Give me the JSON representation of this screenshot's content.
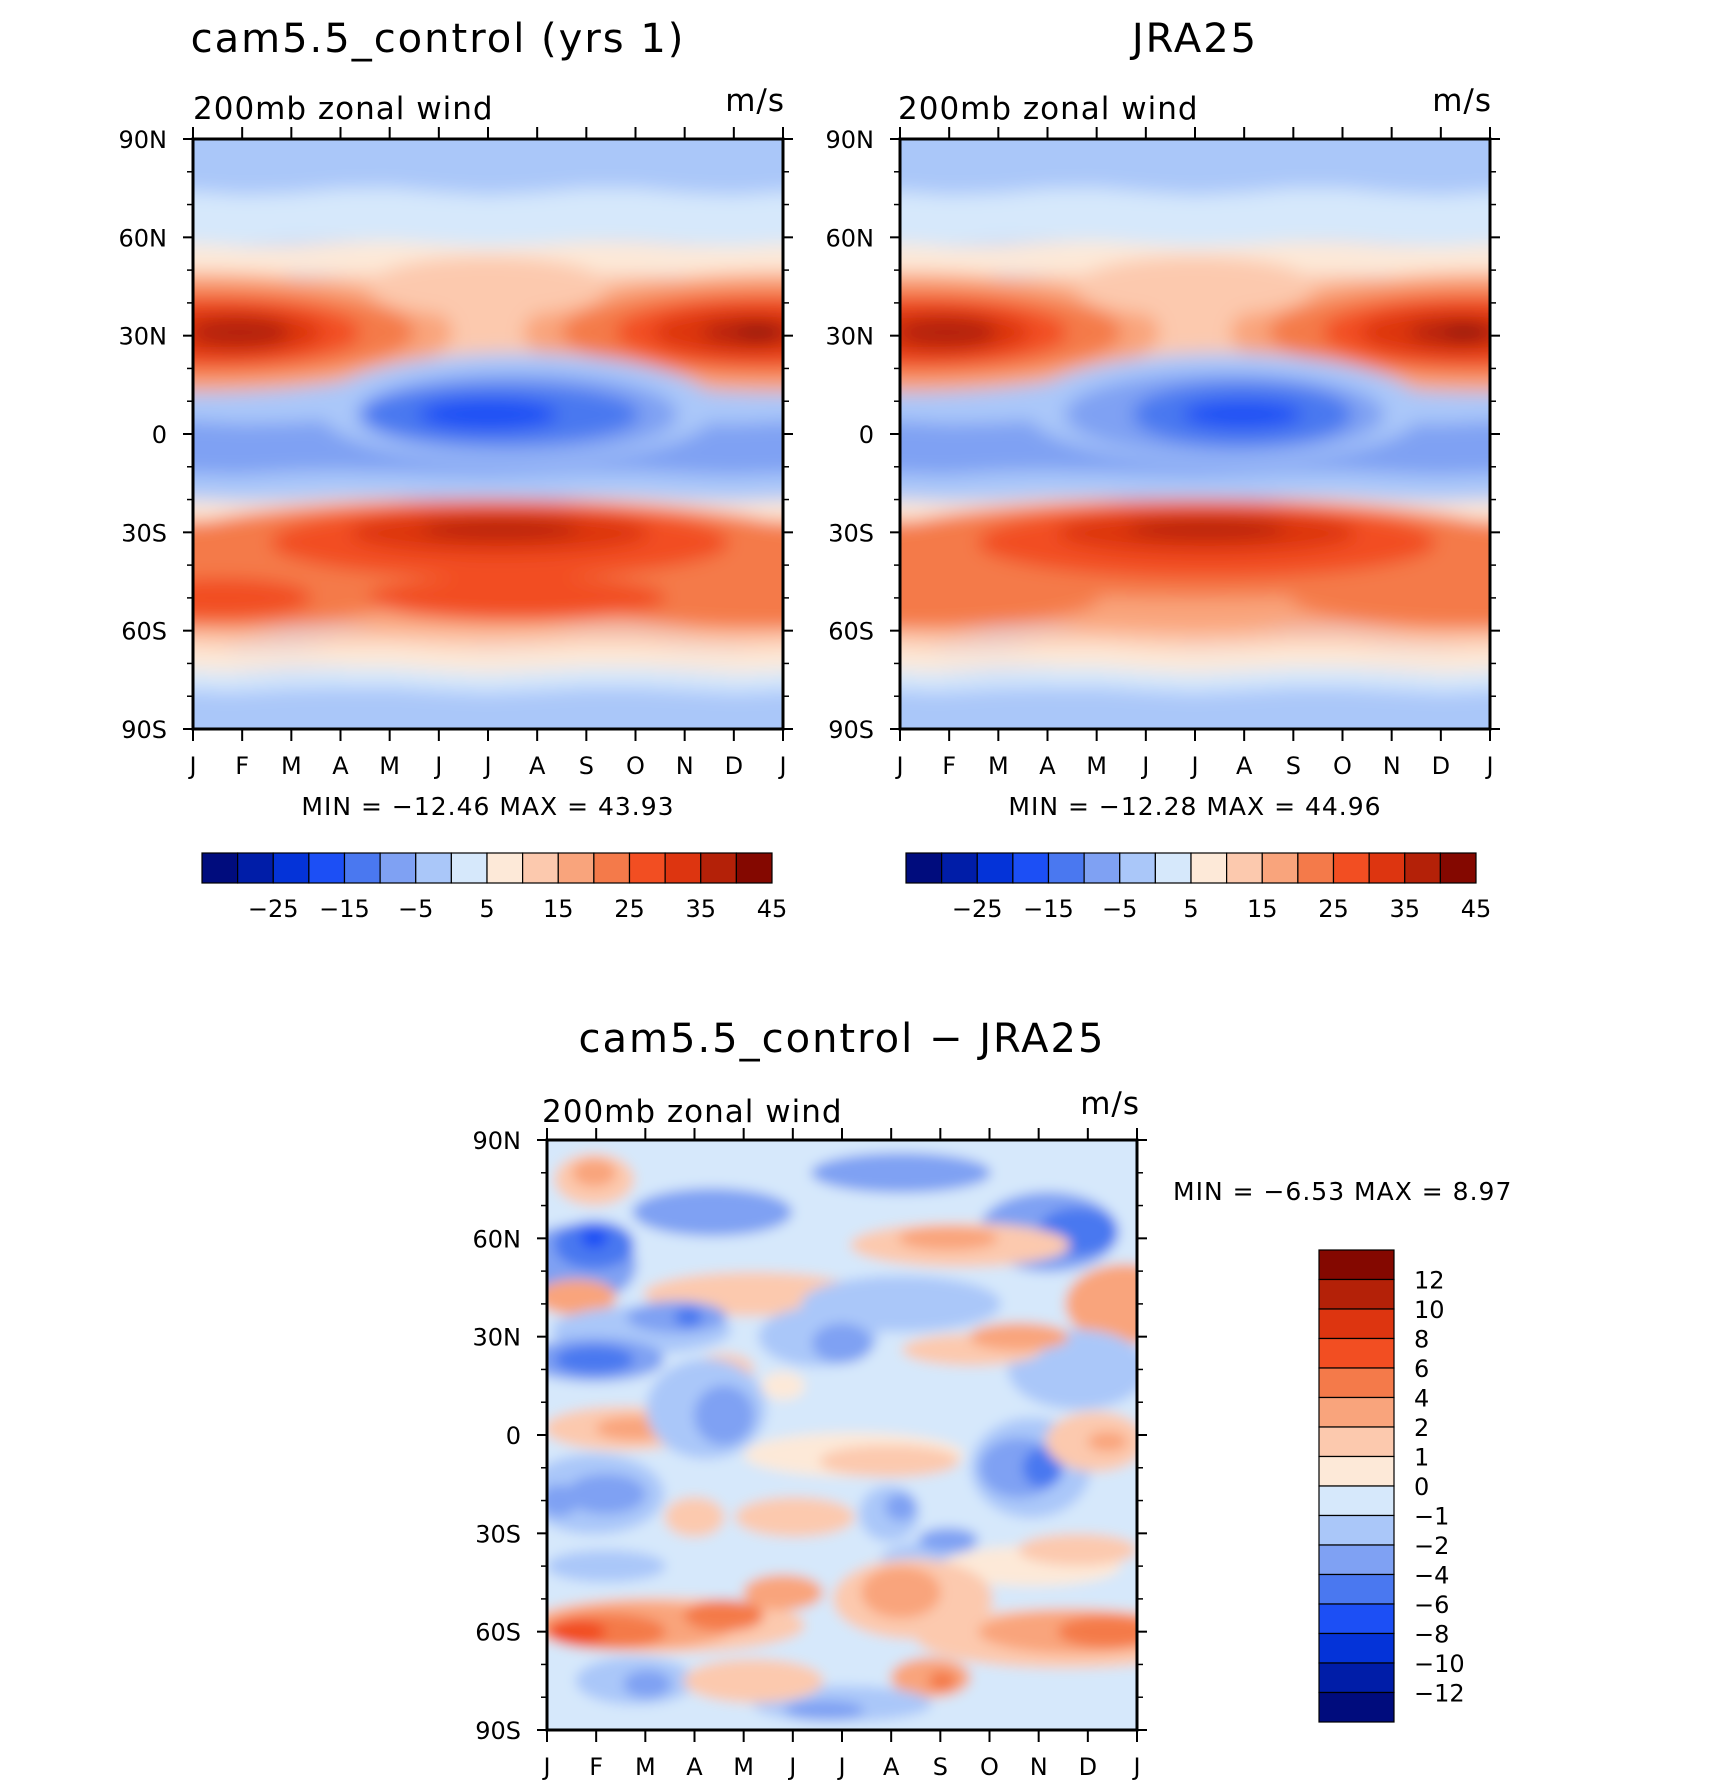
{
  "chart_data": [
    {
      "type": "heatmap",
      "title": "cam5.5_control (yrs 1)",
      "left_label": "200mb zonal wind",
      "right_label": "m/s",
      "x_tick_labels": [
        "J",
        "F",
        "M",
        "A",
        "M",
        "J",
        "J",
        "A",
        "S",
        "O",
        "N",
        "D",
        "J"
      ],
      "y_tick_labels": [
        "90N",
        "60N",
        "30N",
        "0",
        "30S",
        "60S",
        "90S"
      ],
      "ylim": [
        -90,
        90
      ],
      "stats_text": "MIN =  −12.46  MAX =    43.93",
      "min": -12.46,
      "max": 43.93,
      "colorbar": {
        "orientation": "horizontal",
        "levels": [
          -30,
          -25,
          -20,
          -15,
          -10,
          -5,
          0,
          5,
          10,
          15,
          20,
          25,
          30,
          35,
          40,
          45
        ],
        "labels": [
          "−25",
          "−15",
          "−5",
          "5",
          "15",
          "25",
          "35",
          "45"
        ],
        "colors": [
          "#000c7d",
          "#001da8",
          "#0433d8",
          "#1c4ff5",
          "#4a78f0",
          "#7fa1f3",
          "#aac7f9",
          "#d6e8fb",
          "#fde9d8",
          "#fcc9ae",
          "#f9a47c",
          "#f47a4a",
          "#f24e22",
          "#dd3510",
          "#b42108",
          "#840800"
        ]
      },
      "jets": [
        {
          "lon": 0.08,
          "lat": 30,
          "value": 42
        },
        {
          "lon": 0.92,
          "lat": 31,
          "value": 43.93
        },
        {
          "lon": 0.5,
          "lat": -30,
          "value": 38
        },
        {
          "lon": 0.5,
          "lat": 5,
          "value": -12.46
        }
      ]
    },
    {
      "type": "heatmap",
      "title": "JRA25",
      "left_label": "200mb zonal wind",
      "right_label": "m/s",
      "x_tick_labels": [
        "J",
        "F",
        "M",
        "A",
        "M",
        "J",
        "J",
        "A",
        "S",
        "O",
        "N",
        "D",
        "J"
      ],
      "y_tick_labels": [
        "90N",
        "60N",
        "30N",
        "0",
        "30S",
        "60S",
        "90S"
      ],
      "ylim": [
        -90,
        90
      ],
      "stats_text": "MIN =  −12.28  MAX =    44.96",
      "min": -12.28,
      "max": 44.96,
      "colorbar": {
        "orientation": "horizontal",
        "levels": [
          -30,
          -25,
          -20,
          -15,
          -10,
          -5,
          0,
          5,
          10,
          15,
          20,
          25,
          30,
          35,
          40,
          45
        ],
        "labels": [
          "−25",
          "−15",
          "−5",
          "5",
          "15",
          "25",
          "35",
          "45"
        ],
        "colors": [
          "#000c7d",
          "#001da8",
          "#0433d8",
          "#1c4ff5",
          "#4a78f0",
          "#7fa1f3",
          "#aac7f9",
          "#d6e8fb",
          "#fde9d8",
          "#fcc9ae",
          "#f9a47c",
          "#f47a4a",
          "#f24e22",
          "#dd3510",
          "#b42108",
          "#840800"
        ]
      },
      "jets": [
        {
          "lon": 0.08,
          "lat": 30,
          "value": 43
        },
        {
          "lon": 0.95,
          "lat": 31,
          "value": 44.96
        },
        {
          "lon": 0.52,
          "lat": -29,
          "value": 38
        },
        {
          "lon": 0.58,
          "lat": 5,
          "value": -12.28
        }
      ]
    },
    {
      "type": "heatmap",
      "title": "cam5.5_control − JRA25",
      "left_label": "200mb zonal wind",
      "right_label": "m/s",
      "x_tick_labels": [
        "J",
        "F",
        "M",
        "A",
        "M",
        "J",
        "J",
        "A",
        "S",
        "O",
        "N",
        "D",
        "J"
      ],
      "y_tick_labels": [
        "90N",
        "60N",
        "30N",
        "0",
        "30S",
        "60S",
        "90S"
      ],
      "ylim": [
        -90,
        90
      ],
      "stats_text": "MIN =   −6.53  MAX =    8.97",
      "min": -6.53,
      "max": 8.97,
      "colorbar": {
        "orientation": "vertical",
        "levels": [
          -14,
          -12,
          -10,
          -8,
          -6,
          -4,
          -2,
          -1,
          0,
          1,
          2,
          4,
          6,
          8,
          10,
          12,
          14
        ],
        "labels": [
          "12",
          "10",
          "8",
          "6",
          "4",
          "2",
          "1",
          "0",
          "−1",
          "−2",
          "−4",
          "−6",
          "−8",
          "−10",
          "−12"
        ],
        "colors_top_to_bottom": [
          "#840800",
          "#b42108",
          "#dd3510",
          "#f24e22",
          "#f47a4a",
          "#f9a47c",
          "#fcc9ae",
          "#fde9d8",
          "#d6e8fb",
          "#aac7f9",
          "#7fa1f3",
          "#4a78f0",
          "#1c4ff5",
          "#0433d8",
          "#001da8",
          "#000c7d"
        ]
      }
    }
  ]
}
